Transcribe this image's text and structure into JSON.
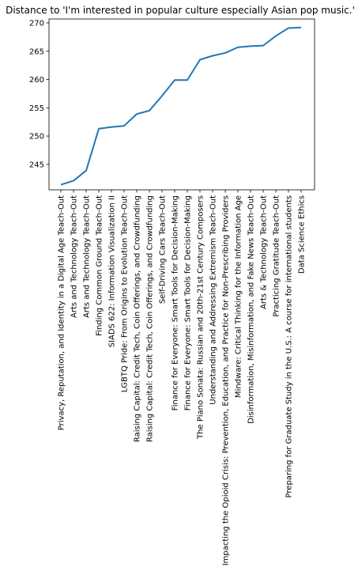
{
  "chart_data": {
    "type": "line",
    "title": "Distance to 'I'm interested in popular culture especially Asian pop music.'",
    "xlabel": "",
    "ylabel": "",
    "categories": [
      "Privacy, Reputation, and Identity in a Digital Age Teach-Out",
      "Arts and Technology Teach-Out",
      "Arts and Technology Teach-Out",
      "Finding Common Ground Teach-Out",
      "SIADS 622: Information Visualization II",
      "LGBTQ Pride: From Origins to Evolution Teach-Out",
      "Raising Capital: Credit Tech, Coin Offerings, and Crowdfunding",
      "Raising Capital: Credit Tech, Coin Offerings, and Crowdfunding",
      "Self-Driving Cars Teach-Out",
      "Finance for Everyone: Smart Tools for Decision-Making",
      "Finance for Everyone: Smart Tools for Decision-Making",
      "The Piano Sonata: Russian and 20th-21st Century Composers",
      "Understanding and Addressing Extremism Teach-Out",
      "Impacting the Opioid Crisis: Prevention, Education, and Practice for Non-Prescribing Providers",
      "Mindware: Critical Thinking for the Information Age",
      "Disinformation, Misinformation, and Fake News Teach-Out",
      "Arts & Technology Teach-Out",
      "Practicing Gratitude Teach-Out",
      "Preparing for Graduate Study in the U.S.: A course for international students",
      "Data Science Ethics"
    ],
    "series": [
      {
        "values": [
          241.4,
          242.1,
          243.9,
          251.3,
          251.6,
          251.8,
          253.9,
          254.5,
          257.1,
          259.9,
          259.9,
          263.5,
          264.2,
          264.7,
          265.7,
          265.9,
          266.0,
          267.7,
          269.1,
          269.2
        ]
      }
    ],
    "ylim": [
      240.5,
      270.7
    ],
    "yticks": [
      245,
      250,
      255,
      260,
      265,
      270
    ],
    "grid": false,
    "colors": {
      "line": "#1f77b4",
      "axes": "#000000",
      "background": "#ffffff"
    }
  }
}
